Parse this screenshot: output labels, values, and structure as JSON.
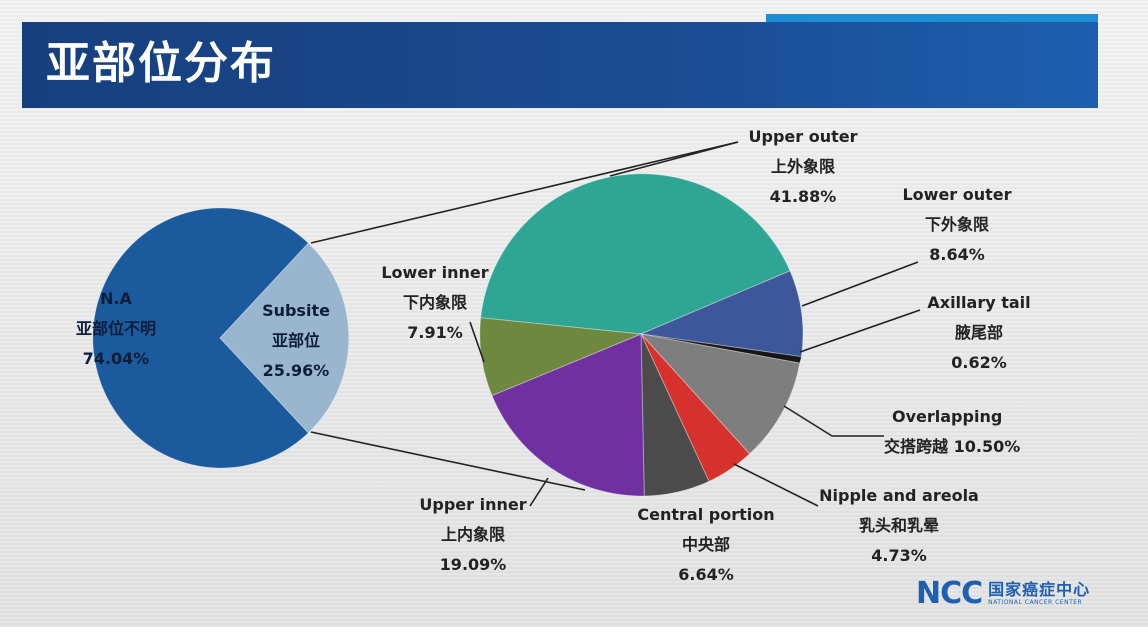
{
  "slide": {
    "title": "亚部位分布",
    "logo": {
      "mark": "NCC",
      "name_cn": "国家癌症中心",
      "name_en": "NATIONAL CANCER CENTER"
    }
  },
  "chart_data": [
    {
      "type": "pie",
      "title": "",
      "slices": [
        {
          "label_en": "N.A",
          "label_cn": "亚部位不明",
          "value": 74.04,
          "value_text": "74.04%",
          "color": "#1c5a9e"
        },
        {
          "label_en": "Subsite",
          "label_cn": "亚部位",
          "value": 25.96,
          "value_text": "25.96%",
          "color": "#9ab6cf"
        }
      ]
    },
    {
      "type": "pie",
      "title": "",
      "slices": [
        {
          "label_en": "Upper outer",
          "label_cn": "上外象限",
          "value": 41.88,
          "value_text": "41.88%",
          "color": "#2fa593"
        },
        {
          "label_en": "Lower outer",
          "label_cn": "下外象限",
          "value": 8.64,
          "value_text": "8.64%",
          "color": "#3e569a"
        },
        {
          "label_en": "Axillary tail",
          "label_cn": "腋尾部",
          "value": 0.62,
          "value_text": "0.62%",
          "color": "#161616"
        },
        {
          "label_en": "Overlapping",
          "label_cn": "交搭跨越",
          "value": 10.5,
          "value_text": "10.50%",
          "color": "#7e7e7e"
        },
        {
          "label_en": "Nipple and areola",
          "label_cn": "乳头和乳晕",
          "value": 4.73,
          "value_text": "4.73%",
          "color": "#d6312c"
        },
        {
          "label_en": "Central portion",
          "label_cn": "中央部",
          "value": 6.64,
          "value_text": "6.64%",
          "color": "#4b4b4b"
        },
        {
          "label_en": "Upper inner",
          "label_cn": "上内象限",
          "value": 19.09,
          "value_text": "19.09%",
          "color": "#7030a0"
        },
        {
          "label_en": "Lower inner",
          "label_cn": "下内象限",
          "value": 7.91,
          "value_text": "7.91%",
          "color": "#6e8840"
        }
      ]
    }
  ]
}
